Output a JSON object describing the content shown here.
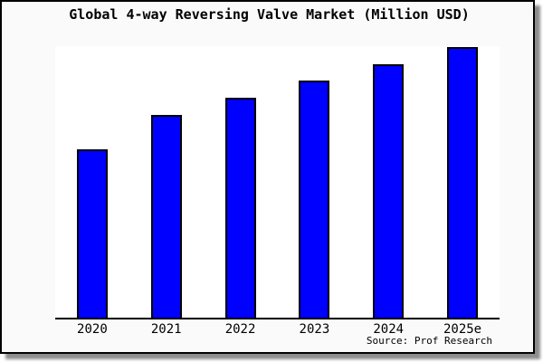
{
  "title": "Global 4-way Reversing Valve Market (Million USD)",
  "source": "Source: Prof Research",
  "colors": {
    "bar_fill": "#0000ff",
    "bar_border": "#000000",
    "frame_bg": "#fafafa",
    "plot_bg": "#ffffff",
    "axis": "#000000",
    "frame_border": "#000000"
  },
  "chart_data": {
    "type": "bar",
    "title": "Global 4-way Reversing Valve Market (Million USD)",
    "categories": [
      "2020",
      "2021",
      "2022",
      "2023",
      "2024",
      "2025e"
    ],
    "values": [
      186,
      224,
      243,
      262,
      280,
      299
    ],
    "values_note": "No y-axis ticks or data labels are shown in the chart; values are relative bar heights measured in pixels from the baseline.",
    "xlabel": "",
    "ylabel": "",
    "grid": false,
    "legend": false,
    "annotation": "Source: Prof Research"
  }
}
